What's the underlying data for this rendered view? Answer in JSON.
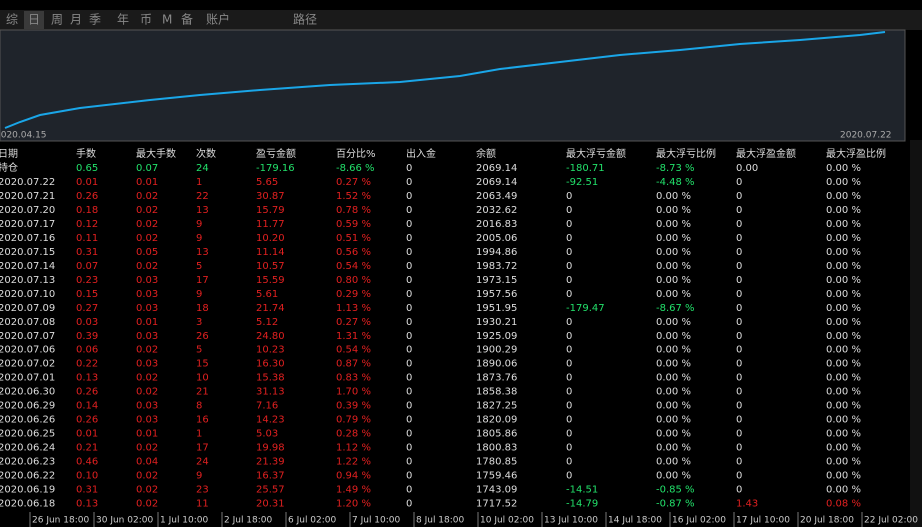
{
  "tabs": [
    "综",
    "日",
    "周",
    "月",
    "季",
    "年",
    "币",
    "M",
    "备",
    "账户",
    "路径"
  ],
  "chart": {
    "start_label": "2020.04.15",
    "end_label": "2020.07.22"
  },
  "table": {
    "headers": [
      "日期",
      "手数",
      "最大手数",
      "次数",
      "盈亏金额",
      "百分比%",
      "出入金",
      "余额",
      "最大浮亏金额",
      "最大浮亏比例",
      "最大浮盈金额",
      "最大浮盈比例"
    ],
    "rows": [
      [
        "持仓",
        "0.65",
        "0.07",
        "24",
        "-179.16",
        "-8.66 %",
        "0",
        "2069.14",
        "-180.71",
        "-8.73 %",
        "0.00",
        "0.00 %"
      ],
      [
        "2020.07.22",
        "0.01",
        "0.01",
        "1",
        "5.65",
        "0.27 %",
        "0",
        "2069.14",
        "-92.51",
        "-4.48 %",
        "0",
        "0.00 %"
      ],
      [
        "2020.07.21",
        "0.26",
        "0.02",
        "22",
        "30.87",
        "1.52 %",
        "0",
        "2063.49",
        "0",
        "0.00 %",
        "0",
        "0.00 %"
      ],
      [
        "2020.07.20",
        "0.18",
        "0.02",
        "13",
        "15.79",
        "0.78 %",
        "0",
        "2032.62",
        "0",
        "0.00 %",
        "0",
        "0.00 %"
      ],
      [
        "2020.07.17",
        "0.12",
        "0.02",
        "9",
        "11.77",
        "0.59 %",
        "0",
        "2016.83",
        "0",
        "0.00 %",
        "0",
        "0.00 %"
      ],
      [
        "2020.07.16",
        "0.11",
        "0.02",
        "9",
        "10.20",
        "0.51 %",
        "0",
        "2005.06",
        "0",
        "0.00 %",
        "0",
        "0.00 %"
      ],
      [
        "2020.07.15",
        "0.31",
        "0.05",
        "13",
        "11.14",
        "0.56 %",
        "0",
        "1994.86",
        "0",
        "0.00 %",
        "0",
        "0.00 %"
      ],
      [
        "2020.07.14",
        "0.07",
        "0.02",
        "5",
        "10.57",
        "0.54 %",
        "0",
        "1983.72",
        "0",
        "0.00 %",
        "0",
        "0.00 %"
      ],
      [
        "2020.07.13",
        "0.23",
        "0.03",
        "17",
        "15.59",
        "0.80 %",
        "0",
        "1973.15",
        "0",
        "0.00 %",
        "0",
        "0.00 %"
      ],
      [
        "2020.07.10",
        "0.15",
        "0.03",
        "9",
        "5.61",
        "0.29 %",
        "0",
        "1957.56",
        "0",
        "0.00 %",
        "0",
        "0.00 %"
      ],
      [
        "2020.07.09",
        "0.27",
        "0.03",
        "18",
        "21.74",
        "1.13 %",
        "0",
        "1951.95",
        "-179.47",
        "-8.67 %",
        "0",
        "0.00 %"
      ],
      [
        "2020.07.08",
        "0.03",
        "0.01",
        "3",
        "5.12",
        "0.27 %",
        "0",
        "1930.21",
        "0",
        "0.00 %",
        "0",
        "0.00 %"
      ],
      [
        "2020.07.07",
        "0.39",
        "0.03",
        "26",
        "24.80",
        "1.31 %",
        "0",
        "1925.09",
        "0",
        "0.00 %",
        "0",
        "0.00 %"
      ],
      [
        "2020.07.06",
        "0.06",
        "0.02",
        "5",
        "10.23",
        "0.54 %",
        "0",
        "1900.29",
        "0",
        "0.00 %",
        "0",
        "0.00 %"
      ],
      [
        "2020.07.02",
        "0.22",
        "0.03",
        "15",
        "16.30",
        "0.87 %",
        "0",
        "1890.06",
        "0",
        "0.00 %",
        "0",
        "0.00 %"
      ],
      [
        "2020.07.01",
        "0.13",
        "0.02",
        "10",
        "15.38",
        "0.83 %",
        "0",
        "1873.76",
        "0",
        "0.00 %",
        "0",
        "0.00 %"
      ],
      [
        "2020.06.30",
        "0.26",
        "0.02",
        "21",
        "31.13",
        "1.70 %",
        "0",
        "1858.38",
        "0",
        "0.00 %",
        "0",
        "0.00 %"
      ],
      [
        "2020.06.29",
        "0.14",
        "0.03",
        "8",
        "7.16",
        "0.39 %",
        "0",
        "1827.25",
        "0",
        "0.00 %",
        "0",
        "0.00 %"
      ],
      [
        "2020.06.26",
        "0.26",
        "0.03",
        "16",
        "14.23",
        "0.79 %",
        "0",
        "1820.09",
        "0",
        "0.00 %",
        "0",
        "0.00 %"
      ],
      [
        "2020.06.25",
        "0.01",
        "0.01",
        "1",
        "5.03",
        "0.28 %",
        "0",
        "1805.86",
        "0",
        "0.00 %",
        "0",
        "0.00 %"
      ],
      [
        "2020.06.24",
        "0.21",
        "0.02",
        "17",
        "19.98",
        "1.12 %",
        "0",
        "1800.83",
        "0",
        "0.00 %",
        "0",
        "0.00 %"
      ],
      [
        "2020.06.23",
        "0.46",
        "0.04",
        "24",
        "21.39",
        "1.22 %",
        "0",
        "1780.85",
        "0",
        "0.00 %",
        "0",
        "0.00 %"
      ],
      [
        "2020.06.22",
        "0.10",
        "0.02",
        "9",
        "16.37",
        "0.94 %",
        "0",
        "1759.46",
        "0",
        "0.00 %",
        "0",
        "0.00 %"
      ],
      [
        "2020.06.19",
        "0.31",
        "0.02",
        "23",
        "25.57",
        "1.49 %",
        "0",
        "1743.09",
        "-14.51",
        "-0.85 %",
        "0",
        "0.00 %"
      ],
      [
        "2020.06.18",
        "0.13",
        "0.02",
        "11",
        "20.31",
        "1.20 %",
        "0",
        "1717.52",
        "-14.79",
        "-0.87 %",
        "1.43",
        "0.08 %"
      ]
    ]
  },
  "time_axis": [
    "26 Jun 18:00",
    "30 Jun 02:00",
    "1 Jul 10:00",
    "2 Jul 18:00",
    "6 Jul 02:00",
    "7 Jul 10:00",
    "8 Jul 18:00",
    "10 Jul 02:00",
    "13 Jul 10:00",
    "14 Jul 18:00",
    "16 Jul 02:00",
    "17 Jul 10:00",
    "20 Jul 18:00",
    "22 Jul 02:00"
  ]
}
